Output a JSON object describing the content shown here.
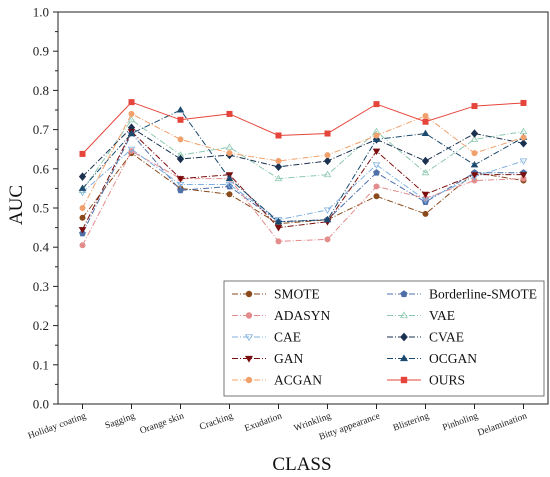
{
  "chart_data": {
    "type": "line",
    "xlabel": "CLASS",
    "ylabel": "AUC",
    "ylim": [
      0,
      1
    ],
    "yticks": [
      "0.0",
      "0.1",
      "0.2",
      "0.3",
      "0.4",
      "0.5",
      "0.6",
      "0.7",
      "0.8",
      "0.9",
      "1.0"
    ],
    "grid": false,
    "legend_position": "bottom-right",
    "categories": [
      "Holiday coating",
      "Sagging",
      "Orange skin",
      "Cracking",
      "Exudation",
      "Wrinkling",
      "Bitty appearance",
      "Blistering",
      "Pinholing",
      "Delamination"
    ],
    "series": [
      {
        "name": "SMOTE",
        "color": "#8a4a1c",
        "marker": "circle",
        "dash": "6,2,1,2",
        "values": [
          0.475,
          0.64,
          0.55,
          0.535,
          0.46,
          0.47,
          0.53,
          0.485,
          0.59,
          0.57
        ]
      },
      {
        "name": "Borderline-SMOTE",
        "color": "#4f6fa8",
        "marker": "pentagon",
        "dash": "6,2,1,2",
        "values": [
          0.435,
          0.69,
          0.545,
          0.555,
          0.465,
          0.47,
          0.59,
          0.515,
          0.59,
          0.59
        ]
      },
      {
        "name": "ADASYN",
        "color": "#e38c8c",
        "marker": "circle",
        "dash": "6,2,1,2",
        "values": [
          0.405,
          0.645,
          0.575,
          0.575,
          0.415,
          0.42,
          0.555,
          0.525,
          0.57,
          0.575
        ]
      },
      {
        "name": "VAE",
        "color": "#8ec8b0",
        "marker": "triangle-up-open",
        "dash": "6,2,1,2",
        "values": [
          0.545,
          0.725,
          0.635,
          0.655,
          0.575,
          0.585,
          0.695,
          0.59,
          0.675,
          0.695
        ]
      },
      {
        "name": "CAE",
        "color": "#7fb0e0",
        "marker": "triangle-down-open",
        "dash": "6,2,1,2",
        "values": [
          0.54,
          0.65,
          0.56,
          0.56,
          0.47,
          0.495,
          0.61,
          0.52,
          0.58,
          0.62
        ]
      },
      {
        "name": "CVAE",
        "color": "#1a3150",
        "marker": "diamond",
        "dash": "6,2,1,2",
        "values": [
          0.58,
          0.705,
          0.625,
          0.635,
          0.605,
          0.62,
          0.675,
          0.62,
          0.69,
          0.665
        ]
      },
      {
        "name": "GAN",
        "color": "#7a0e0e",
        "marker": "triangle-down",
        "dash": "6,2,1,2",
        "values": [
          0.445,
          0.695,
          0.575,
          0.585,
          0.45,
          0.465,
          0.645,
          0.535,
          0.585,
          0.585
        ]
      },
      {
        "name": "OCGAN",
        "color": "#1c4a6e",
        "marker": "triangle-up",
        "dash": "6,2,1,2",
        "values": [
          0.55,
          0.69,
          0.75,
          0.575,
          0.465,
          0.47,
          0.675,
          0.69,
          0.61,
          0.68
        ]
      },
      {
        "name": "ACGAN",
        "color": "#f0a06a",
        "marker": "circle",
        "dash": "6,2,1,2",
        "values": [
          0.5,
          0.74,
          0.675,
          0.64,
          0.62,
          0.635,
          0.685,
          0.735,
          0.64,
          0.68
        ]
      },
      {
        "name": "OURS",
        "color": "#e5453a",
        "marker": "square",
        "dash": "",
        "values": [
          0.638,
          0.77,
          0.725,
          0.74,
          0.685,
          0.69,
          0.765,
          0.72,
          0.76,
          0.768
        ]
      }
    ]
  }
}
